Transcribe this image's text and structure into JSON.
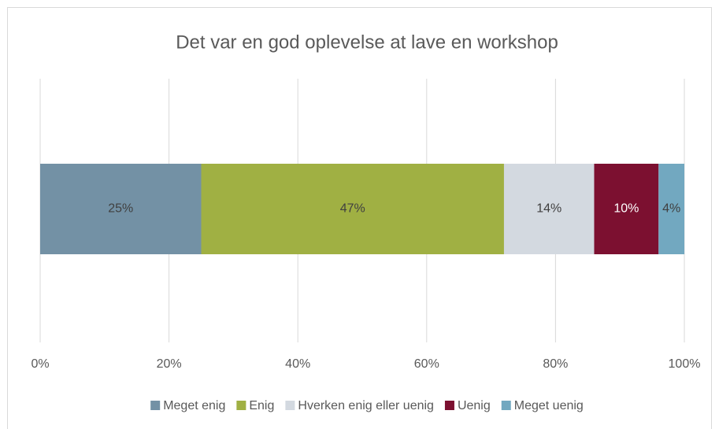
{
  "chart_data": {
    "type": "bar",
    "orientation": "horizontal",
    "stacked": true,
    "title": "Det var en god oplevelse at lave en workshop",
    "categories": [
      null
    ],
    "series": [
      {
        "name": "Meget enig",
        "color": "#7391a5",
        "values": [
          25
        ],
        "value_labels": [
          "25%"
        ],
        "label_color": "#404040"
      },
      {
        "name": "Enig",
        "color": "#a0b043",
        "values": [
          47
        ],
        "value_labels": [
          "47%"
        ],
        "label_color": "#404040"
      },
      {
        "name": "Hverken enig eller uenig",
        "color": "#d3d9e0",
        "values": [
          14
        ],
        "value_labels": [
          "14%"
        ],
        "label_color": "#404040"
      },
      {
        "name": "Uenig",
        "color": "#7c1030",
        "values": [
          10
        ],
        "value_labels": [
          "10%"
        ],
        "label_color": "#ffffff"
      },
      {
        "name": "Meget uenig",
        "color": "#72a8c0",
        "values": [
          4
        ],
        "value_labels": [
          "4%"
        ],
        "label_color": "#404040"
      }
    ],
    "xlim": [
      0,
      100
    ],
    "xticks": [
      {
        "value": 0,
        "label": "0%"
      },
      {
        "value": 20,
        "label": "20%"
      },
      {
        "value": 40,
        "label": "40%"
      },
      {
        "value": 60,
        "label": "60%"
      },
      {
        "value": 80,
        "label": "80%"
      },
      {
        "value": 100,
        "label": "100%"
      }
    ],
    "grid": true,
    "legend": "bottom"
  }
}
